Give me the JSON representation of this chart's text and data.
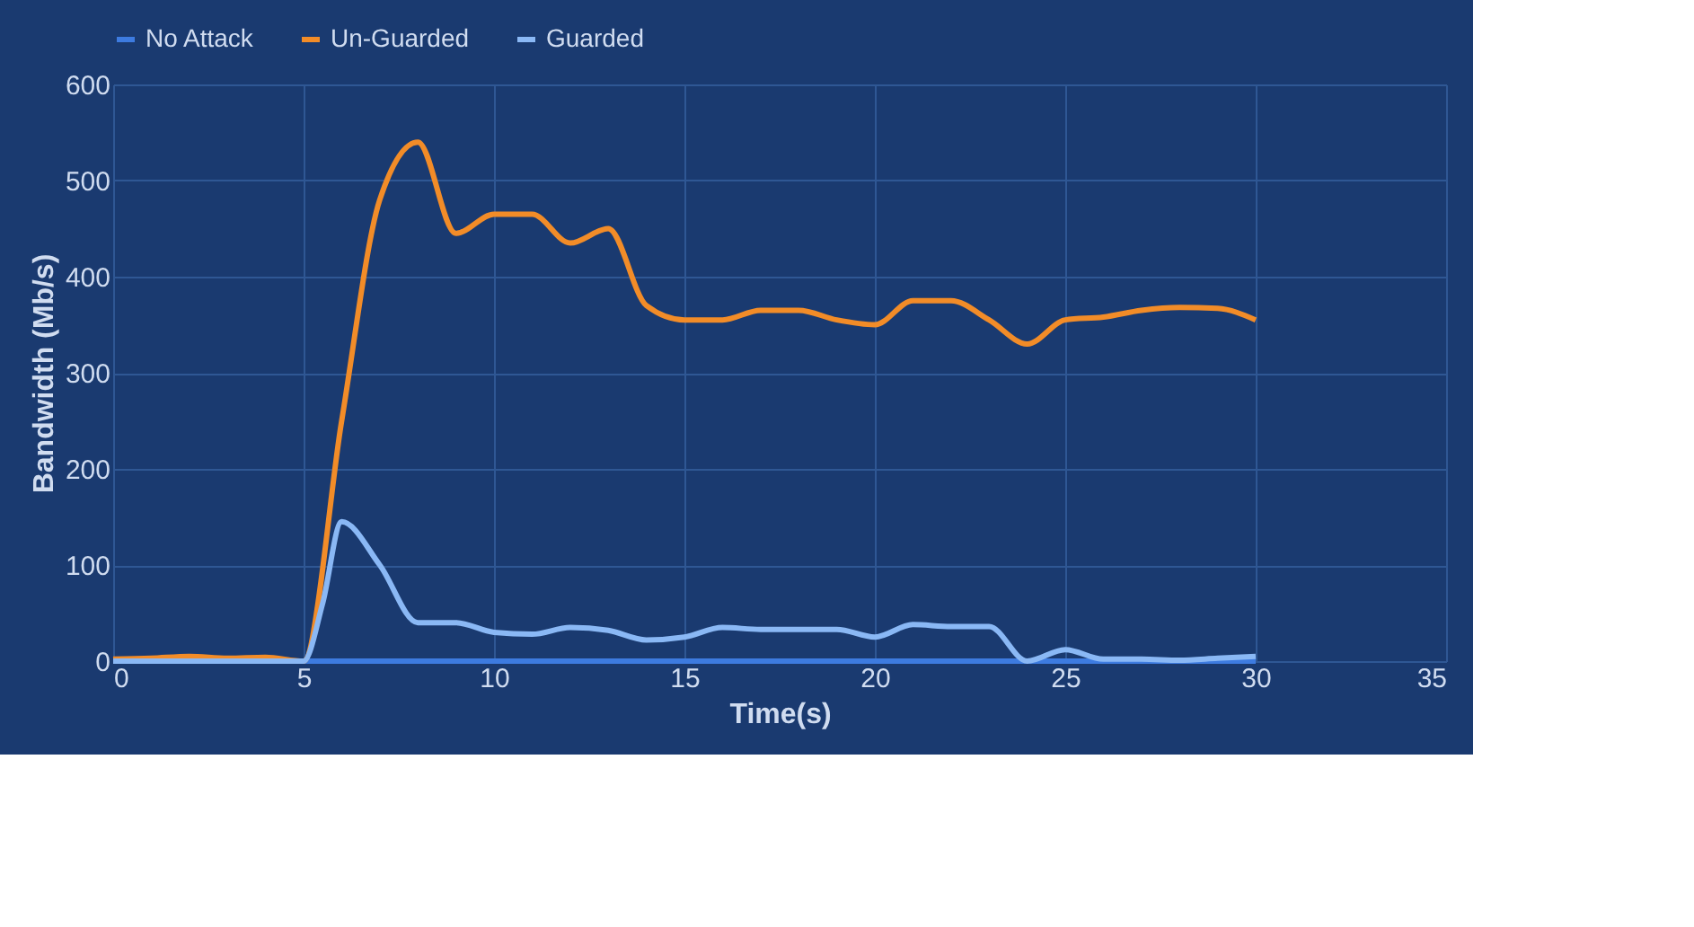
{
  "chart_data": {
    "type": "line",
    "xlabel": "Time(s)",
    "ylabel": "Bandwidth (Mb/s)",
    "xlim": [
      0,
      35
    ],
    "xticks": [
      0,
      5,
      10,
      15,
      20,
      25,
      30,
      35
    ],
    "ylim": [
      0,
      600
    ],
    "yticks": [
      0,
      100,
      200,
      300,
      400,
      500,
      600
    ],
    "grid": true,
    "legend": "top",
    "marker": "none",
    "line_style": "solid",
    "series": [
      {
        "name": "No Attack",
        "color": "#3d7be0",
        "x": [
          0,
          5,
          10,
          15,
          20,
          25,
          30
        ],
        "values": [
          0,
          0,
          0,
          0,
          0,
          0,
          0
        ]
      },
      {
        "name": "Un-Guarded",
        "color": "#f28c28",
        "x": [
          0,
          1,
          2,
          3,
          4,
          5,
          6,
          7,
          8,
          9,
          10,
          11,
          12,
          13,
          14,
          15,
          16,
          17,
          18,
          19,
          20,
          21,
          22,
          23,
          24,
          25,
          26,
          27,
          28,
          29,
          30
        ],
        "values": [
          2,
          3,
          5,
          3,
          4,
          0,
          250,
          480,
          540,
          445,
          465,
          465,
          435,
          450,
          370,
          355,
          355,
          365,
          365,
          355,
          350,
          375,
          375,
          355,
          330,
          355,
          358,
          365,
          368,
          367,
          355
        ]
      },
      {
        "name": "Guarded",
        "color": "#8ab8f5",
        "x": [
          0,
          1,
          2,
          3,
          4,
          5,
          5.5,
          6,
          7,
          8,
          9,
          10,
          11,
          12,
          13,
          14,
          15,
          16,
          17,
          18,
          19,
          20,
          21,
          22,
          23,
          24,
          25,
          26,
          27,
          28,
          29,
          30
        ],
        "values": [
          0,
          0,
          0,
          0,
          0,
          0,
          60,
          145,
          100,
          40,
          40,
          30,
          28,
          35,
          32,
          22,
          25,
          35,
          33,
          33,
          33,
          25,
          38,
          36,
          36,
          0,
          12,
          2,
          2,
          1,
          3,
          5
        ]
      }
    ]
  }
}
